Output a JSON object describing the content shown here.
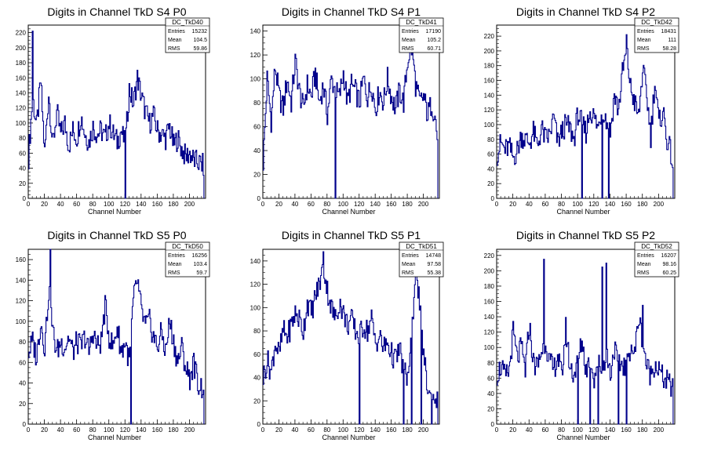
{
  "xlabel": "Channel Number",
  "colors": {
    "line": "#00008b",
    "frame": "#000000",
    "background": "#ffffff"
  },
  "chart_data": [
    {
      "type": "line",
      "title": "Digits in Channel TkD S4 P0",
      "xlabel": "Channel Number",
      "xlim": [
        0,
        220
      ],
      "ylim": [
        0,
        230
      ],
      "xticks": [
        0,
        20,
        40,
        60,
        80,
        100,
        120,
        140,
        160,
        180,
        200
      ],
      "yticks": [
        0,
        20,
        40,
        60,
        80,
        100,
        120,
        140,
        160,
        180,
        200,
        220
      ],
      "stats": {
        "name": "DC_TkD40",
        "entries": "15232",
        "mean": "104.5",
        "rms": "59.86"
      },
      "spikes": [
        {
          "x": 5,
          "y": 222
        },
        {
          "x": 120,
          "y": 0
        }
      ],
      "series": [
        {
          "x": [
            0,
            5,
            10,
            15,
            20,
            25,
            30,
            35,
            40,
            45,
            50,
            55,
            60,
            65,
            70,
            75,
            80,
            85,
            90,
            95,
            100,
            105,
            110,
            115,
            120,
            125,
            130,
            135,
            140,
            145,
            150,
            155,
            160,
            165,
            170,
            175,
            180,
            185,
            190,
            195,
            200,
            205,
            210,
            215,
            220
          ],
          "values": [
            55,
            135,
            95,
            155,
            60,
            140,
            70,
            115,
            85,
            100,
            70,
            90,
            80,
            110,
            85,
            75,
            95,
            85,
            90,
            80,
            100,
            85,
            75,
            90,
            70,
            145,
            125,
            160,
            135,
            115,
            100,
            110,
            90,
            85,
            80,
            95,
            70,
            80,
            65,
            55,
            60,
            50,
            48,
            45,
            40
          ]
        }
      ]
    },
    {
      "type": "line",
      "title": "Digits in Channel TkD S4 P1",
      "xlabel": "Channel Number",
      "xlim": [
        0,
        220
      ],
      "ylim": [
        0,
        145
      ],
      "xticks": [
        0,
        20,
        40,
        60,
        80,
        100,
        120,
        140,
        160,
        180,
        200
      ],
      "yticks": [
        0,
        20,
        40,
        60,
        80,
        100,
        120,
        140
      ],
      "stats": {
        "name": "DC_TkD41",
        "entries": "17190",
        "mean": "105.2",
        "rms": "60.71"
      },
      "spikes": [
        {
          "x": 90,
          "y": 0
        },
        {
          "x": 185,
          "y": 120
        }
      ],
      "series": [
        {
          "x": [
            0,
            5,
            10,
            15,
            20,
            25,
            30,
            35,
            40,
            45,
            50,
            55,
            60,
            65,
            70,
            75,
            80,
            85,
            90,
            95,
            100,
            105,
            110,
            115,
            120,
            125,
            130,
            135,
            140,
            145,
            150,
            155,
            160,
            165,
            170,
            175,
            180,
            185,
            190,
            195,
            200,
            205,
            210,
            215,
            220
          ],
          "values": [
            30,
            100,
            65,
            110,
            85,
            75,
            100,
            80,
            115,
            90,
            75,
            95,
            85,
            105,
            80,
            95,
            70,
            100,
            90,
            85,
            105,
            80,
            95,
            90,
            80,
            100,
            85,
            95,
            75,
            90,
            80,
            100,
            85,
            75,
            90,
            80,
            115,
            130,
            95,
            80,
            85,
            70,
            80,
            65,
            30
          ]
        }
      ]
    },
    {
      "type": "line",
      "title": "Digits in Channel TkD S4 P2",
      "xlabel": "Channel Number",
      "xlim": [
        0,
        220
      ],
      "ylim": [
        0,
        235
      ],
      "xticks": [
        0,
        20,
        40,
        60,
        80,
        100,
        120,
        140,
        160,
        180,
        200
      ],
      "yticks": [
        0,
        20,
        40,
        60,
        80,
        100,
        120,
        140,
        160,
        180,
        200,
        220
      ],
      "stats": {
        "name": "DC_TkD42",
        "entries": "18431",
        "mean": "111",
        "rms": "58.28"
      },
      "spikes": [
        {
          "x": 105,
          "y": 0
        },
        {
          "x": 130,
          "y": 0
        },
        {
          "x": 138,
          "y": 0
        },
        {
          "x": 160,
          "y": 222
        }
      ],
      "series": [
        {
          "x": [
            0,
            5,
            10,
            15,
            20,
            25,
            30,
            35,
            40,
            45,
            50,
            55,
            60,
            65,
            70,
            75,
            80,
            85,
            90,
            95,
            100,
            105,
            110,
            115,
            120,
            125,
            130,
            135,
            140,
            145,
            150,
            155,
            160,
            165,
            170,
            175,
            180,
            185,
            190,
            195,
            200,
            205,
            210,
            215,
            220
          ],
          "values": [
            60,
            75,
            65,
            70,
            55,
            65,
            85,
            80,
            75,
            90,
            70,
            95,
            80,
            85,
            110,
            75,
            90,
            100,
            95,
            80,
            115,
            100,
            90,
            120,
            110,
            95,
            125,
            105,
            90,
            140,
            120,
            170,
            200,
            150,
            130,
            110,
            175,
            140,
            85,
            160,
            100,
            120,
            80,
            60,
            30
          ]
        }
      ]
    },
    {
      "type": "line",
      "title": "Digits in Channel TkD S5 P0",
      "xlabel": "Channel Number",
      "xlim": [
        0,
        220
      ],
      "ylim": [
        0,
        170
      ],
      "xticks": [
        0,
        20,
        40,
        60,
        80,
        100,
        120,
        140,
        160,
        180,
        200
      ],
      "yticks": [
        0,
        20,
        40,
        60,
        80,
        100,
        120,
        140,
        160
      ],
      "stats": {
        "name": "DC_TkD50",
        "entries": "16256",
        "mean": "103.4",
        "rms": "59.7"
      },
      "spikes": [
        {
          "x": 27,
          "y": 170
        },
        {
          "x": 127,
          "y": 0
        }
      ],
      "series": [
        {
          "x": [
            0,
            5,
            10,
            15,
            20,
            25,
            30,
            35,
            40,
            45,
            50,
            55,
            60,
            65,
            70,
            75,
            80,
            85,
            90,
            95,
            100,
            105,
            110,
            115,
            120,
            125,
            130,
            135,
            140,
            145,
            150,
            155,
            160,
            165,
            170,
            175,
            180,
            185,
            190,
            195,
            200,
            205,
            210,
            215,
            220
          ],
          "values": [
            70,
            80,
            65,
            100,
            75,
            130,
            90,
            70,
            80,
            75,
            85,
            70,
            80,
            75,
            85,
            70,
            90,
            75,
            80,
            115,
            85,
            75,
            95,
            70,
            80,
            60,
            120,
            140,
            110,
            95,
            100,
            85,
            75,
            90,
            70,
            100,
            80,
            60,
            75,
            55,
            45,
            60,
            40,
            35,
            45
          ]
        }
      ]
    },
    {
      "type": "line",
      "title": "Digits in Channel TkD S5 P1",
      "xlabel": "Channel Number",
      "xlim": [
        0,
        220
      ],
      "ylim": [
        0,
        150
      ],
      "xticks": [
        0,
        20,
        40,
        60,
        80,
        100,
        120,
        140,
        160,
        180,
        200
      ],
      "yticks": [
        0,
        20,
        40,
        60,
        80,
        100,
        120,
        140
      ],
      "stats": {
        "name": "DC_TkD51",
        "entries": "14748",
        "mean": "97.58",
        "rms": "55.38"
      },
      "spikes": [
        {
          "x": 75,
          "y": 148
        },
        {
          "x": 120,
          "y": 0
        },
        {
          "x": 175,
          "y": 0
        },
        {
          "x": 185,
          "y": 0
        },
        {
          "x": 190,
          "y": 145
        },
        {
          "x": 197,
          "y": 0
        },
        {
          "x": 210,
          "y": 0
        }
      ],
      "series": [
        {
          "x": [
            0,
            5,
            10,
            15,
            20,
            25,
            30,
            35,
            40,
            45,
            50,
            55,
            60,
            65,
            70,
            75,
            80,
            85,
            90,
            95,
            100,
            105,
            110,
            115,
            120,
            125,
            130,
            135,
            140,
            145,
            150,
            155,
            160,
            165,
            170,
            175,
            180,
            185,
            190,
            195,
            200,
            205,
            210,
            215,
            220
          ],
          "values": [
            40,
            55,
            45,
            70,
            60,
            80,
            75,
            85,
            95,
            90,
            80,
            105,
            95,
            110,
            120,
            135,
            115,
            100,
            90,
            105,
            95,
            85,
            90,
            80,
            75,
            85,
            80,
            90,
            70,
            75,
            65,
            70,
            60,
            55,
            65,
            45,
            40,
            70,
            140,
            100,
            60,
            30,
            20,
            25,
            10
          ]
        }
      ]
    },
    {
      "type": "line",
      "title": "Digits in Channel TkD S5 P2",
      "xlabel": "Channel Number",
      "xlim": [
        0,
        220
      ],
      "ylim": [
        0,
        228
      ],
      "xticks": [
        0,
        20,
        40,
        60,
        80,
        100,
        120,
        140,
        160,
        180,
        200
      ],
      "yticks": [
        0,
        20,
        40,
        60,
        80,
        100,
        120,
        140,
        160,
        180,
        200,
        220
      ],
      "stats": {
        "name": "DC_TkD52",
        "entries": "16207",
        "mean": "98.16",
        "rms": "60.25"
      },
      "spikes": [
        {
          "x": 58,
          "y": 215
        },
        {
          "x": 100,
          "y": 0
        },
        {
          "x": 115,
          "y": 0
        },
        {
          "x": 125,
          "y": 0
        },
        {
          "x": 130,
          "y": 205
        },
        {
          "x": 135,
          "y": 210
        },
        {
          "x": 150,
          "y": 0
        },
        {
          "x": 160,
          "y": 0
        },
        {
          "x": 180,
          "y": 155
        }
      ],
      "series": [
        {
          "x": [
            0,
            5,
            10,
            15,
            20,
            25,
            30,
            35,
            40,
            45,
            50,
            55,
            60,
            65,
            70,
            75,
            80,
            85,
            90,
            95,
            100,
            105,
            110,
            115,
            120,
            125,
            130,
            135,
            140,
            145,
            150,
            155,
            160,
            165,
            170,
            175,
            180,
            185,
            190,
            195,
            200,
            205,
            210,
            215,
            220
          ],
          "values": [
            65,
            75,
            60,
            70,
            120,
            85,
            100,
            70,
            130,
            80,
            75,
            95,
            110,
            80,
            70,
            90,
            60,
            125,
            75,
            65,
            80,
            110,
            70,
            90,
            60,
            85,
            70,
            95,
            65,
            100,
            75,
            80,
            70,
            105,
            90,
            140,
            110,
            75,
            65,
            80,
            70,
            60,
            55,
            50,
            35
          ]
        }
      ]
    }
  ]
}
